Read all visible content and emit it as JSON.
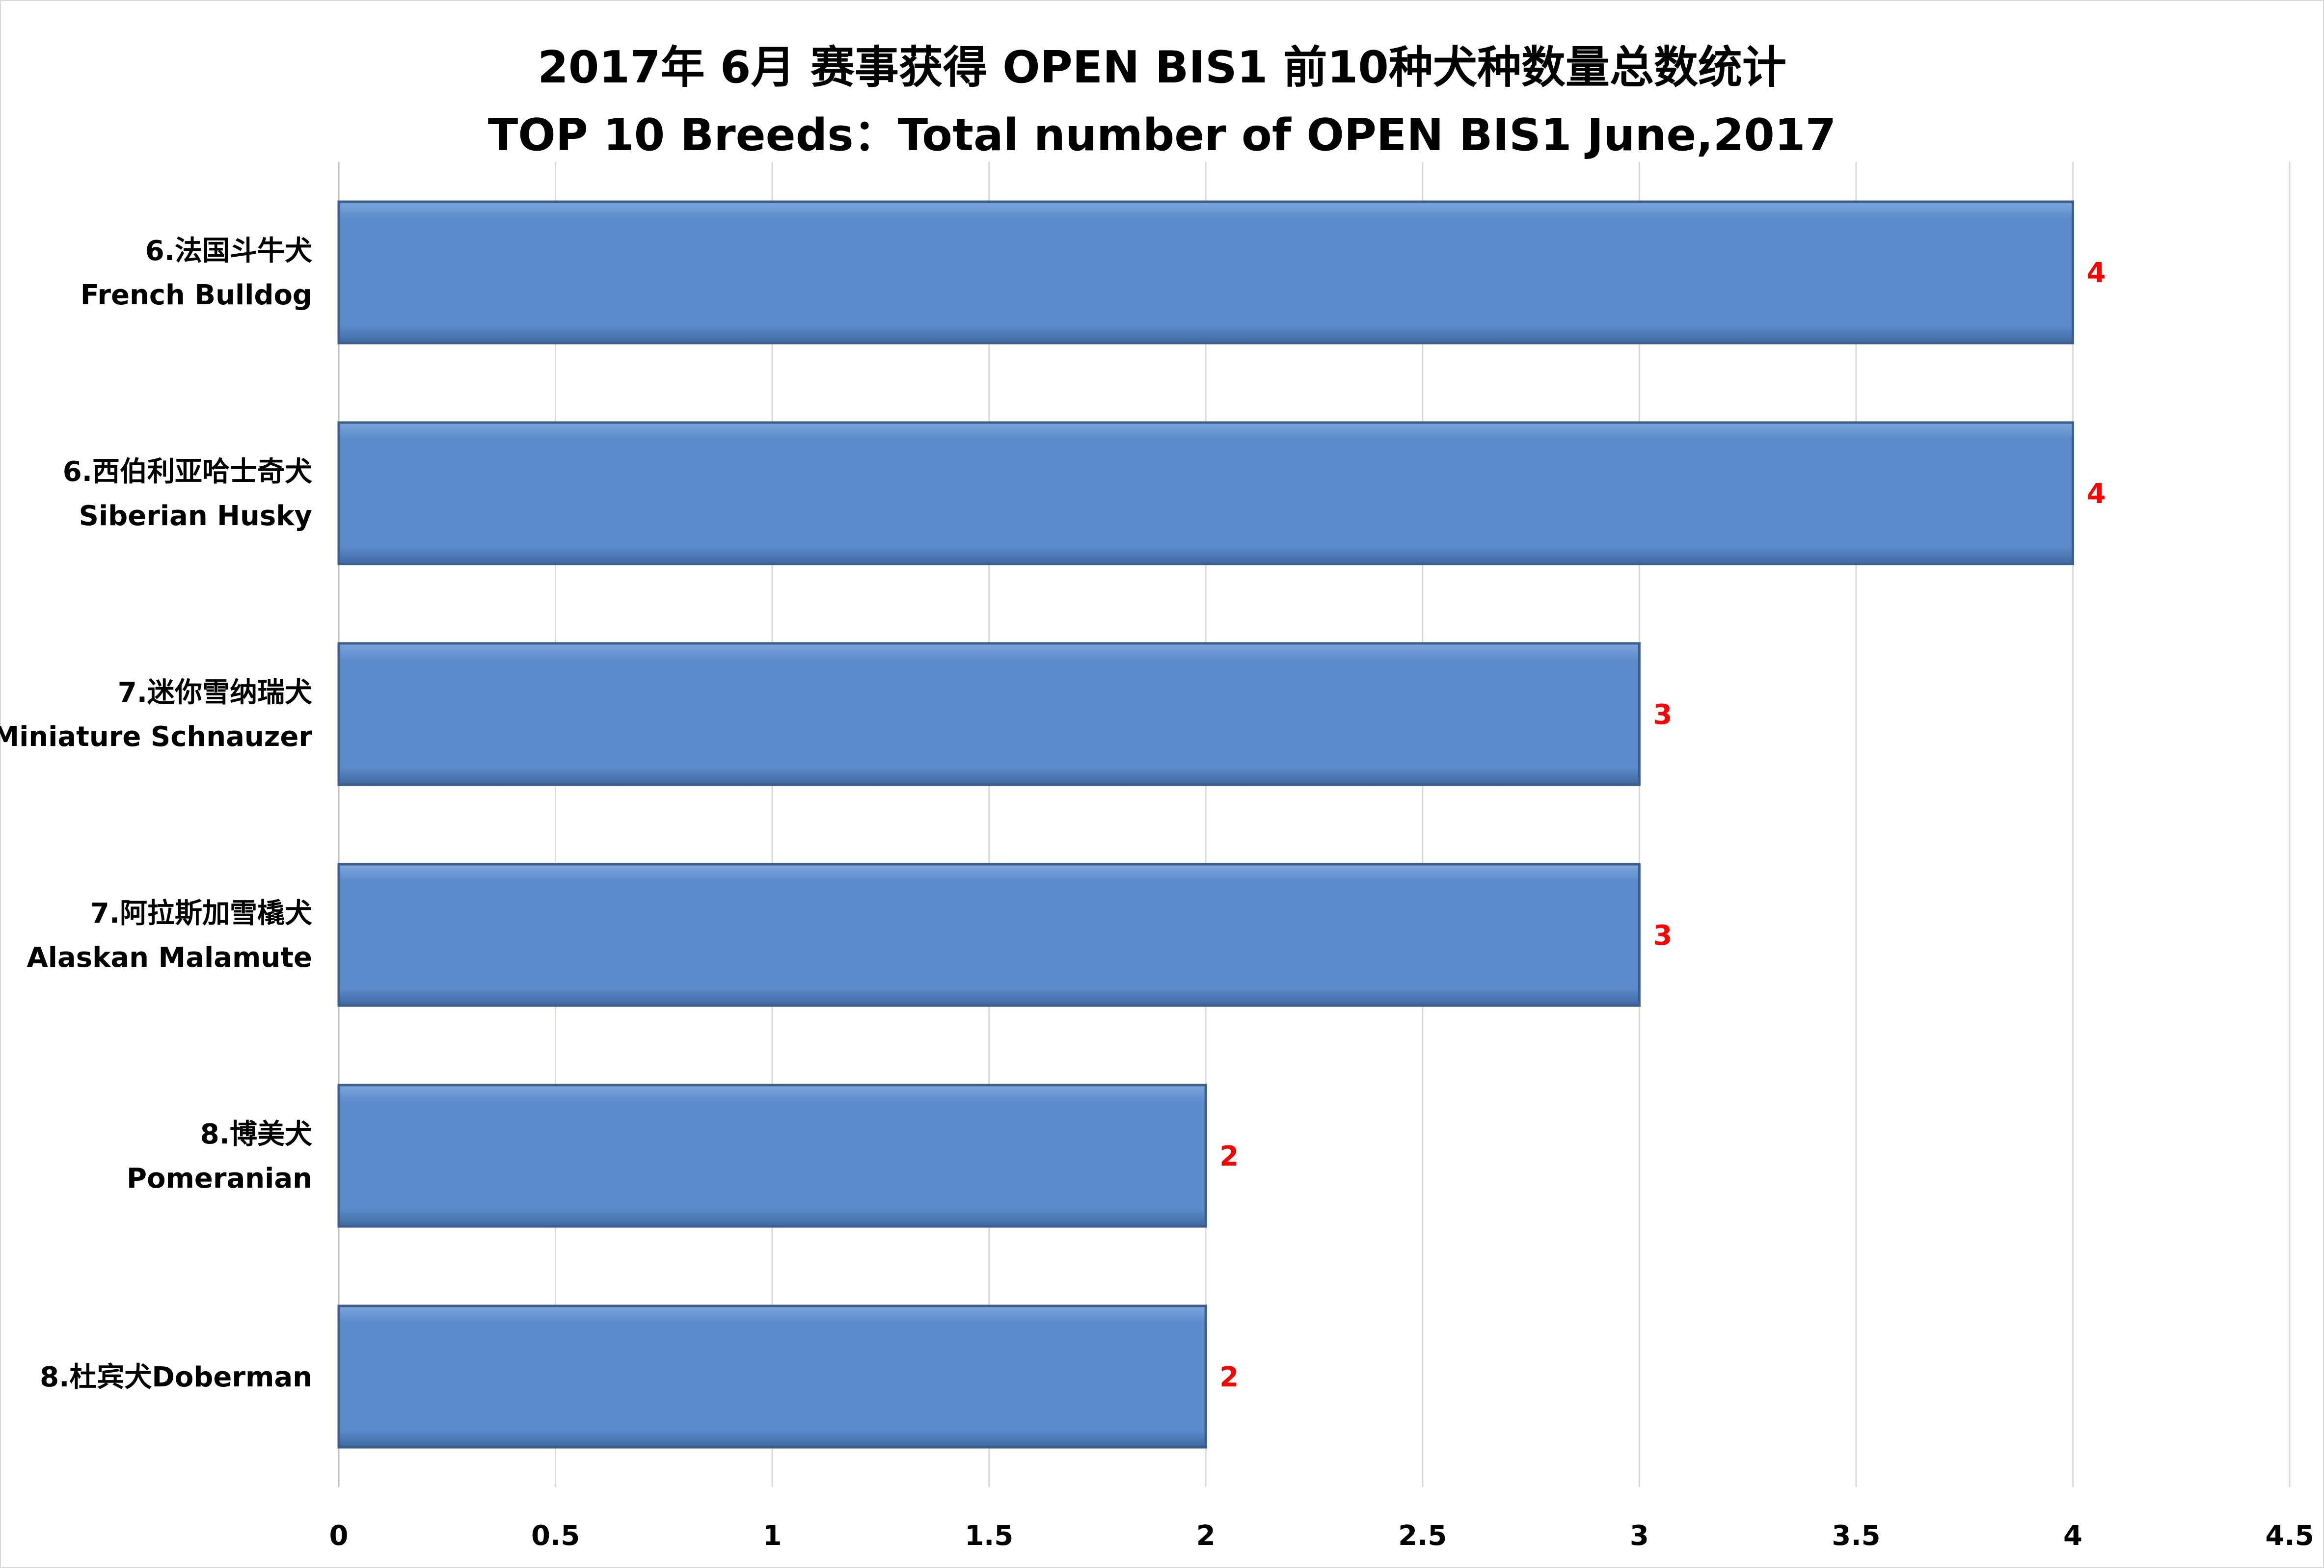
{
  "chart_data": {
    "type": "bar",
    "orientation": "horizontal",
    "title": [
      "2017年  6月 赛事获得 OPEN BIS1 前10种犬种数量总数统计",
      "TOP 10 Breeds：Total number of OPEN BIS1 June,2017"
    ],
    "categories": [
      [
        "6.法国斗牛犬",
        "French Bulldog"
      ],
      [
        "6.西伯利亚哈士奇犬",
        "Siberian Husky"
      ],
      [
        "7.迷你雪纳瑞犬",
        "Miniature Schnauzer"
      ],
      [
        "7.阿拉斯加雪橇犬",
        "Alaskan Malamute"
      ],
      [
        "8.博美犬",
        "Pomeranian"
      ],
      [
        "8.杜宾犬Doberman"
      ]
    ],
    "values": [
      4,
      4,
      3,
      3,
      2,
      2
    ],
    "data_labels": [
      "4",
      "4",
      "3",
      "3",
      "2",
      "2"
    ],
    "xlim": [
      0,
      4.5
    ],
    "x_ticks": [
      "0",
      "0.5",
      "1",
      "1.5",
      "2",
      "2.5",
      "3",
      "3.5",
      "4",
      "4.5"
    ],
    "grid": "vertical",
    "colors": {
      "bar": "#5b8bcb",
      "bar_edge": "#3e5f8e",
      "data_label": "#ff0000",
      "grid": "#d9d9d9"
    }
  }
}
